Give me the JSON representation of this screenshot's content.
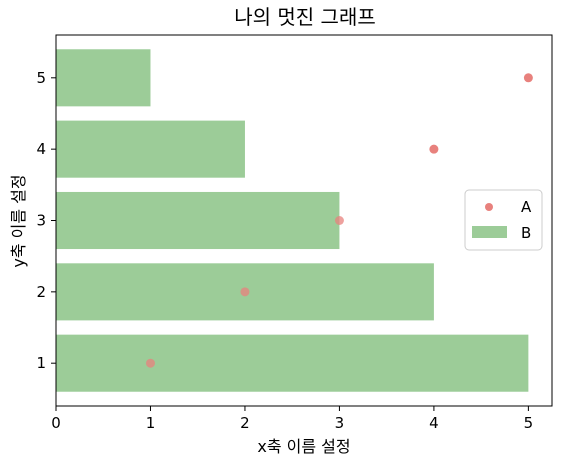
{
  "chart_data": {
    "type": "bar",
    "title": "나의 멋진 그래프",
    "xlabel": "x축 이름 설정",
    "ylabel": "y축 이름 설정",
    "xlim": [
      0,
      5.25
    ],
    "ylim": [
      0.4,
      5.6
    ],
    "xticks": [
      "0",
      "1",
      "2",
      "3",
      "4",
      "5"
    ],
    "yticks": [
      "1",
      "2",
      "3",
      "4",
      "5"
    ],
    "grid": false,
    "legend_position": "right",
    "series": [
      {
        "name": "A",
        "kind": "scatter",
        "color": "#e8817d",
        "points": [
          {
            "x": 1,
            "y": 1
          },
          {
            "x": 2,
            "y": 2
          },
          {
            "x": 3,
            "y": 3
          },
          {
            "x": 4,
            "y": 4
          },
          {
            "x": 5,
            "y": 5
          }
        ]
      },
      {
        "name": "B",
        "kind": "barh",
        "color": "#9ccc98",
        "categories": [
          1,
          2,
          3,
          4,
          5
        ],
        "values": [
          5,
          4,
          3,
          2,
          1
        ]
      }
    ]
  }
}
